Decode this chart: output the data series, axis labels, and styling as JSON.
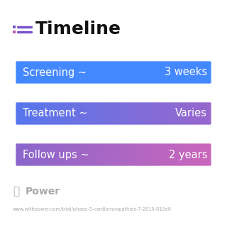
{
  "title": "Timeline",
  "background_color": "#ffffff",
  "rows": [
    {
      "label": "Screening ~",
      "value": "3 weeks",
      "color_left": "#4488ff",
      "color_right": "#4488ff"
    },
    {
      "label": "Treatment ~",
      "value": "Varies",
      "color_left": "#5577ee",
      "color_right": "#9966cc"
    },
    {
      "label": "Follow ups ~",
      "value": "2 years",
      "color_left": "#8866cc",
      "color_right": "#cc66bb"
    }
  ],
  "watermark": "Power",
  "url": "www.withpower.com/trial/phase-3-cardiomyopathies-7-2019-810e0",
  "text_color": "#ffffff",
  "title_color": "#111111",
  "watermark_color": "#aaaaaa",
  "url_color": "#aaaaaa",
  "icon_dot_top": "#7755cc",
  "icon_dot_bottom": "#bb55aa",
  "icon_line_color": "#7755cc"
}
